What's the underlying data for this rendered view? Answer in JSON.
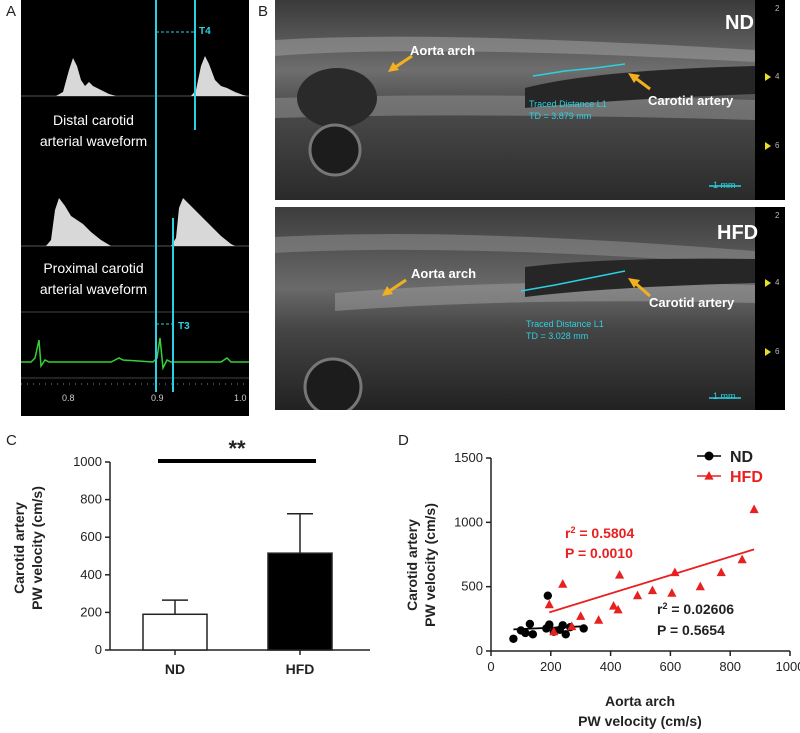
{
  "panels": {
    "A": {
      "letter": "A",
      "distal_label_1": "Distal carotid",
      "distal_label_2": "arterial waveform",
      "proximal_label_1": "Proximal carotid",
      "proximal_label_2": "arterial waveform",
      "t4": "T4",
      "t3": "T3",
      "ticks": [
        "0.8",
        "0.9",
        "1.0"
      ]
    },
    "B": {
      "letter": "B",
      "nd": {
        "title": "ND",
        "aorta": "Aorta arch",
        "carotid": "Carotid artery",
        "trace_1": "Traced Distance L1",
        "trace_2": "TD = 3.879 mm",
        "scale": "1 mm",
        "depth": [
          "2",
          "4",
          "6"
        ]
      },
      "hfd": {
        "title": "HFD",
        "aorta": "Aorta arch",
        "carotid": "Carotid artery",
        "trace_1": "Traced Distance L1",
        "trace_2": "TD = 3.028 mm",
        "scale": "1 mm",
        "depth": [
          "2",
          "4",
          "6"
        ]
      }
    },
    "C": {
      "letter": "C"
    },
    "D": {
      "letter": "D"
    }
  },
  "chart_data": [
    {
      "type": "bar",
      "ylabel_1": "Carotid artery",
      "ylabel_2": "PW velocity (cm/s)",
      "categories": [
        "ND",
        "HFD"
      ],
      "values": [
        190,
        515
      ],
      "errors": [
        75,
        210
      ],
      "ylim": [
        0,
        1000
      ],
      "yticks": [
        "0",
        "200",
        "400",
        "600",
        "800",
        "1000"
      ],
      "significance": "**",
      "colors": [
        "#ffffff",
        "#000000"
      ]
    },
    {
      "type": "scatter",
      "xlabel_1": "Aorta arch",
      "xlabel_2": "PW velocity (cm/s)",
      "ylabel_1": "Carotid artery",
      "ylabel_2": "PW velocity (cm/s)",
      "xlim": [
        0,
        1000
      ],
      "ylim": [
        0,
        1500
      ],
      "xticks": [
        "0",
        "200",
        "400",
        "600",
        "800",
        "1000"
      ],
      "yticks": [
        "0",
        "500",
        "1000",
        "1500"
      ],
      "legend_position": "top-right",
      "series": [
        {
          "name": "ND",
          "color": "#000000",
          "marker": "circle",
          "points": [
            [
              75,
              95
            ],
            [
              100,
              160
            ],
            [
              115,
              140
            ],
            [
              130,
              210
            ],
            [
              140,
              130
            ],
            [
              185,
              175
            ],
            [
              190,
              430
            ],
            [
              195,
              205
            ],
            [
              210,
              150
            ],
            [
              230,
              165
            ],
            [
              240,
              200
            ],
            [
              250,
              130
            ],
            [
              265,
              185
            ],
            [
              310,
              175
            ]
          ],
          "fit": [
            [
              75,
              168
            ],
            [
              310,
              192
            ]
          ],
          "r2": "0.02606",
          "p": "P = 0.5654"
        },
        {
          "name": "HFD",
          "color": "#e82020",
          "marker": "triangle",
          "points": [
            [
              195,
              360
            ],
            [
              210,
              150
            ],
            [
              240,
              520
            ],
            [
              270,
              190
            ],
            [
              300,
              270
            ],
            [
              360,
              240
            ],
            [
              410,
              350
            ],
            [
              425,
              320
            ],
            [
              430,
              590
            ],
            [
              490,
              430
            ],
            [
              540,
              470
            ],
            [
              605,
              450
            ],
            [
              615,
              610
            ],
            [
              700,
              500
            ],
            [
              770,
              610
            ],
            [
              840,
              710
            ],
            [
              880,
              1100
            ]
          ],
          "fit": [
            [
              195,
              300
            ],
            [
              880,
              790
            ]
          ],
          "r2": "0.5804",
          "p": "P = 0.0010"
        }
      ]
    }
  ]
}
